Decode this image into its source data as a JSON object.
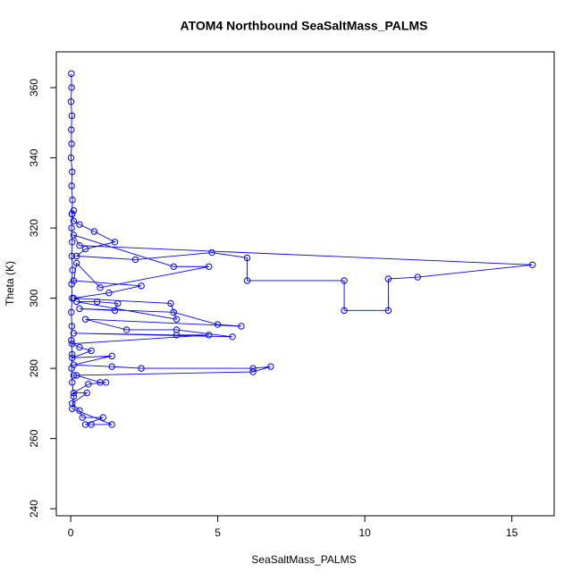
{
  "chart_data": {
    "type": "line",
    "title": "ATOM4 Northbound SeaSaltMass_PALMS",
    "xlabel": "SeaSaltMass_PALMS",
    "ylabel": "Theta (K)",
    "color": "#0000ff",
    "markers": true,
    "xlim": [
      -0.49,
      16.44
    ],
    "ylim": [
      238,
      370.2
    ],
    "xticks": [
      0,
      5,
      10,
      15
    ],
    "yticks": [
      240,
      260,
      280,
      300,
      320,
      340,
      360
    ],
    "x": [
      0.02,
      0.03,
      0.01,
      0.04,
      0.02,
      0.03,
      0.01,
      0.05,
      0.03,
      0.06,
      0.04,
      0.1,
      0.3,
      0.8,
      1.5,
      0.5,
      0.2,
      2.2,
      4.8,
      6.0,
      6.0,
      9.3,
      9.3,
      10.8,
      10.8,
      11.8,
      15.7,
      0.3,
      0.1,
      3.5,
      4.7,
      1.0,
      0.2,
      0.1,
      2.4,
      1.3,
      0.1,
      3.4,
      3.6,
      0.2,
      0.9,
      1.6,
      1.5,
      0.3,
      3.5,
      5.0,
      5.8,
      0.5,
      1.9,
      3.6,
      5.5,
      0.1,
      3.6,
      4.7,
      0.05,
      0.3,
      0.7,
      0.05,
      1.4,
      0.1,
      1.4,
      2.4,
      6.2,
      6.8,
      6.2,
      0.1,
      0.2,
      1.0,
      1.2,
      0.6,
      0.1,
      0.55,
      0.05,
      0.3,
      0.4,
      1.1,
      0.5,
      0.7,
      1.4,
      0.05,
      0.1,
      0.05,
      0.03,
      0.05,
      0.02,
      0.04,
      0.02,
      0.05,
      0.03,
      0.06,
      0.04,
      0.05,
      0.03,
      0.05,
      0.1
    ],
    "values": [
      364,
      360,
      356,
      352,
      348,
      344,
      340,
      336,
      332,
      328,
      324,
      322,
      321,
      319,
      316,
      314,
      312,
      311,
      313,
      311.5,
      305,
      305,
      296.5,
      296.5,
      305.5,
      306,
      309.5,
      315,
      318,
      309,
      309,
      303,
      310,
      305,
      303.5,
      301.5,
      300,
      298.5,
      294,
      299,
      299,
      298.5,
      296.5,
      297,
      296,
      292.5,
      292,
      294,
      291,
      291,
      289,
      290,
      289.5,
      289.5,
      287,
      286,
      285,
      283,
      283.5,
      281,
      280.5,
      280,
      280,
      280.5,
      279,
      278,
      278,
      276,
      276,
      275.5,
      273,
      273,
      270,
      268,
      266,
      266,
      264,
      264,
      264,
      268.5,
      272,
      276,
      280,
      284,
      288,
      292,
      296,
      300,
      304,
      308,
      312,
      316,
      320,
      324,
      325
    ]
  }
}
